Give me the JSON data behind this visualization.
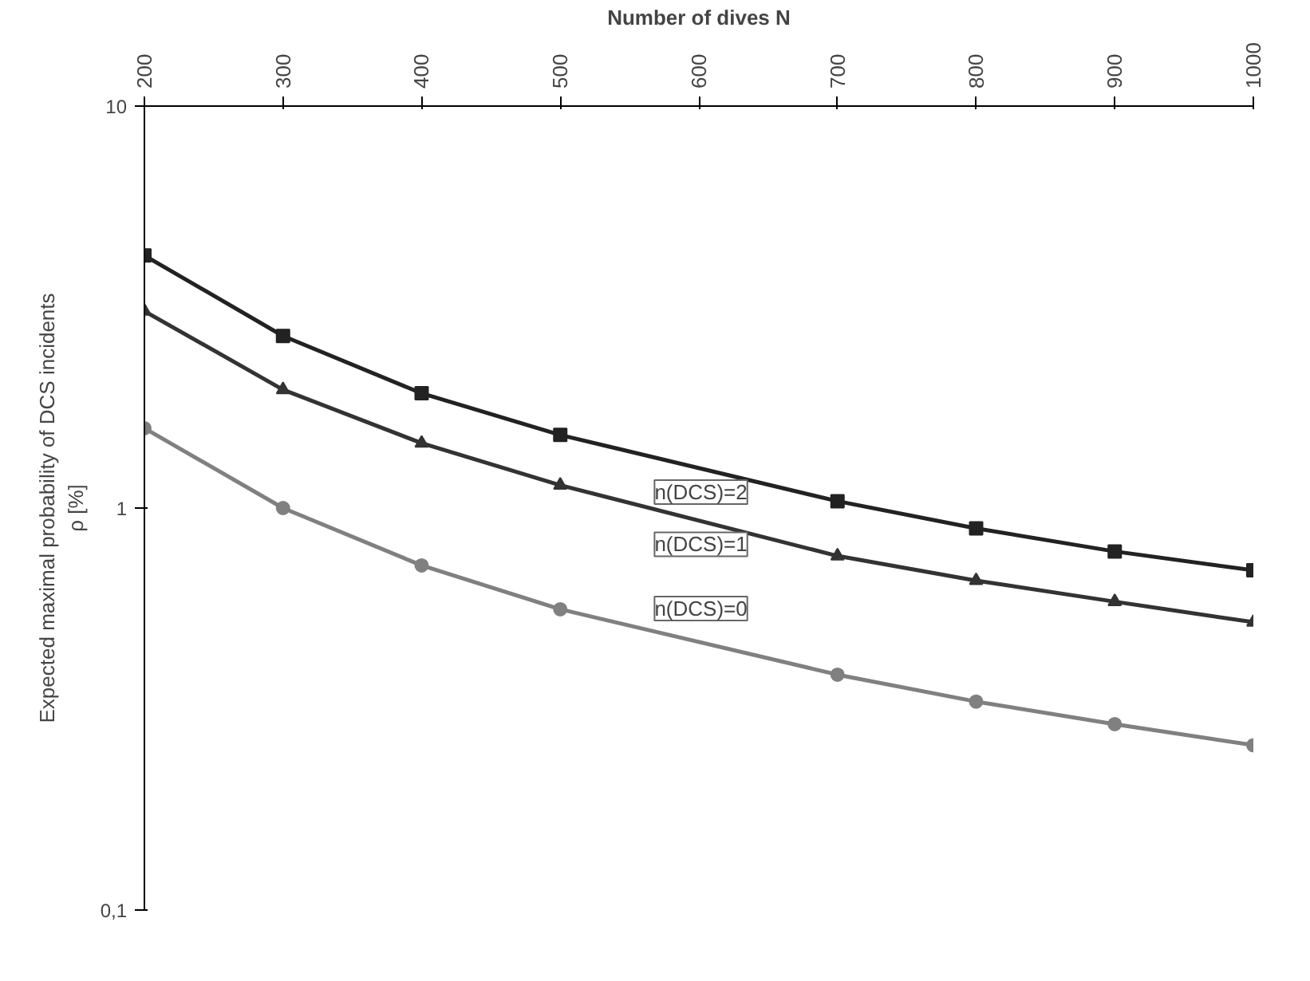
{
  "chart_data": {
    "type": "line",
    "xlabel": "Number of dives N",
    "ylabel": "Expected maximal probability of DCS incidents\nρ [%]",
    "x": [
      200,
      300,
      400,
      500,
      600,
      700,
      800,
      900,
      1000
    ],
    "xlim": [
      200,
      1000
    ],
    "xticks": [
      200,
      300,
      400,
      500,
      600,
      700,
      800,
      900,
      1000
    ],
    "ylim": [
      0.1,
      10
    ],
    "yticks": [
      {
        "value": 0.1,
        "label": "0,1"
      },
      1,
      10
    ],
    "log": true,
    "grid": false,
    "series": [
      {
        "color": "#222222",
        "marker": "square",
        "values": [
          4.25,
          2.68,
          1.93,
          1.52,
          null,
          1.04,
          0.89,
          0.78,
          0.7
        ]
      },
      {
        "color": "#333333",
        "marker": "triangle",
        "values": [
          3.09,
          1.97,
          1.45,
          1.14,
          null,
          0.76,
          0.66,
          0.585,
          0.52
        ]
      },
      {
        "color": "#808080",
        "marker": "circle",
        "values": [
          1.58,
          1.0,
          0.72,
          0.56,
          null,
          0.385,
          0.33,
          0.29,
          0.257
        ]
      }
    ],
    "annotations": [
      "n(DCS)=2",
      "n(DCS)=1",
      "n(DCS)=0"
    ]
  }
}
